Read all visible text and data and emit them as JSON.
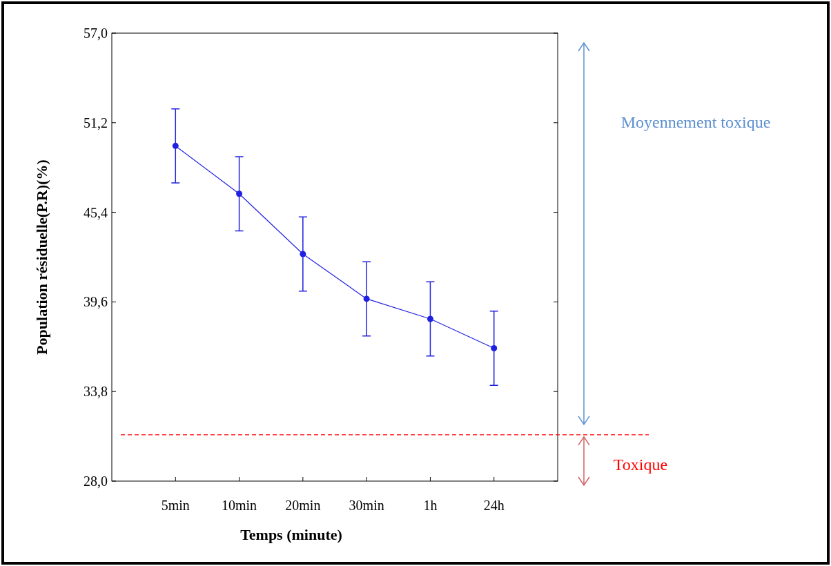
{
  "chart_data": {
    "type": "line",
    "xlabel": "Temps (minute)",
    "ylabel": "Population résiduelle(P.R)(%)",
    "categories": [
      "5min",
      "10min",
      "20min",
      "30min",
      "1h",
      "24h"
    ],
    "series": [
      {
        "color": "#2020e0",
        "values": [
          49.7,
          46.6,
          42.7,
          39.8,
          38.5,
          36.6
        ],
        "errors": [
          2.4,
          2.4,
          2.4,
          2.4,
          2.4,
          2.4
        ]
      }
    ],
    "ylim": [
      28.0,
      57.0
    ],
    "yticks": [
      {
        "value": 28.0,
        "label": "28,0"
      },
      {
        "value": 33.8,
        "label": "33,8"
      },
      {
        "value": 39.6,
        "label": "39,6"
      },
      {
        "value": 45.4,
        "label": "45,4"
      },
      {
        "value": 51.2,
        "label": "51,2"
      },
      {
        "value": 57.0,
        "label": "57,0"
      }
    ],
    "ref_lines": [
      {
        "axis": "y",
        "value": 31.0,
        "color": "#ff0000",
        "line_style": "dashed"
      }
    ],
    "annotations": [
      "Moyennement toxique",
      "Toxique"
    ],
    "marker": "circle",
    "line_style": "solid",
    "grid": false
  }
}
